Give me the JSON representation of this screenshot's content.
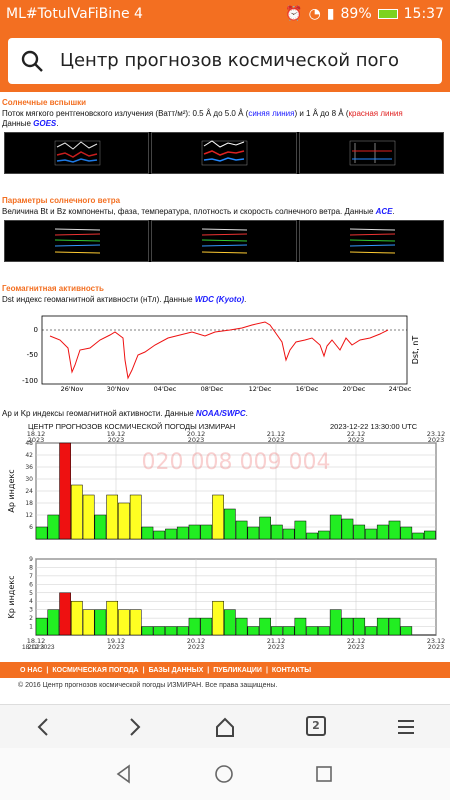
{
  "status": {
    "left": "ML#TotulVaFiBine 4",
    "battery": "89%",
    "time": "15:37"
  },
  "search": {
    "title": "Центр прогнозов космической пого"
  },
  "flares": {
    "heading": "Солнечные вспышки",
    "line1_a": "Поток мягкого рентгеновского излучения (Ватт/м²): 0.5 Å до 5.0 Å (",
    "line1_blue": "синяя линия",
    "line1_b": ") и 1 Å до 8 Å (",
    "line1_red": "красная линия",
    "line2_a": "Данные ",
    "line2_link": "GOES"
  },
  "wind": {
    "heading": "Параметры солнечного ветра",
    "text_a": "Величина Bt и Bz компоненты, фаза, температура, плотность и скорость солнечного ветра. Данные ",
    "link": "ACE"
  },
  "geomag": {
    "heading": "Геомагнитная активность",
    "text_a": "Dst индекс геомагнитной активности (нТл). Данные ",
    "link": "WDC (Kyoto)",
    "ylabel": "Dst, nT",
    "xticks": [
      "26'Nov",
      "30'Nov",
      "04'Dec",
      "08'Dec",
      "12'Dec",
      "16'Dec",
      "20'Dec",
      "24'Dec"
    ],
    "yticks": [
      "0",
      "-50",
      "-100"
    ]
  },
  "kp": {
    "text_a": "Ap и Kp индексы геомагнитной активности. Данные ",
    "link": "NOAA/SWPC",
    "title": "ЦЕНТР ПРОГНОЗОВ КОСМИЧЕСКОЙ ПОГОДЫ ИЗМИРАН",
    "stamp": "2023-12-22 13:30:00 UTC",
    "watermark": "020 008 009 004",
    "dates": [
      "18.12\n2023",
      "19.12\n2023",
      "20.12\n2023",
      "21.12\n2023",
      "22.12\n2023",
      "23.12\n2023"
    ],
    "ap_label": "Ap индекс",
    "kp_label": "Kp индекс",
    "ap_ticks": [
      "48",
      "42",
      "36",
      "30",
      "24",
      "18",
      "12",
      "6"
    ],
    "kp_ticks": [
      "9",
      "8",
      "7",
      "6",
      "5",
      "4",
      "3",
      "2",
      "1"
    ]
  },
  "chart_data": {
    "type": "bar",
    "series": [
      {
        "name": "Ap индекс",
        "values": [
          6,
          12,
          48,
          27,
          22,
          12,
          22,
          18,
          22,
          6,
          4,
          5,
          6,
          7,
          7,
          22,
          15,
          9,
          6,
          11,
          7,
          5,
          9,
          3,
          4,
          12,
          10,
          7,
          5,
          7,
          9,
          6,
          3,
          4
        ]
      },
      {
        "name": "Kp индекс",
        "values": [
          2,
          3,
          5,
          4,
          3,
          3,
          4,
          3,
          3,
          1,
          1,
          1,
          1,
          2,
          2,
          4,
          3,
          2,
          1,
          2,
          1,
          1,
          2,
          1,
          1,
          3,
          2,
          2,
          1,
          2,
          2,
          1,
          0,
          0
        ]
      }
    ]
  },
  "footer": {
    "items": [
      "О НАС",
      "КОСМИЧЕСКАЯ ПОГОДА",
      "БАЗЫ ДАННЫХ",
      "ПУБЛИКАЦИИ",
      "КОНТАКТЫ"
    ],
    "copyright": "© 2016 Центр прогнозов космической погоды ИЗМИРАН. Все права защищены."
  },
  "browser": {
    "tabs": "2"
  }
}
